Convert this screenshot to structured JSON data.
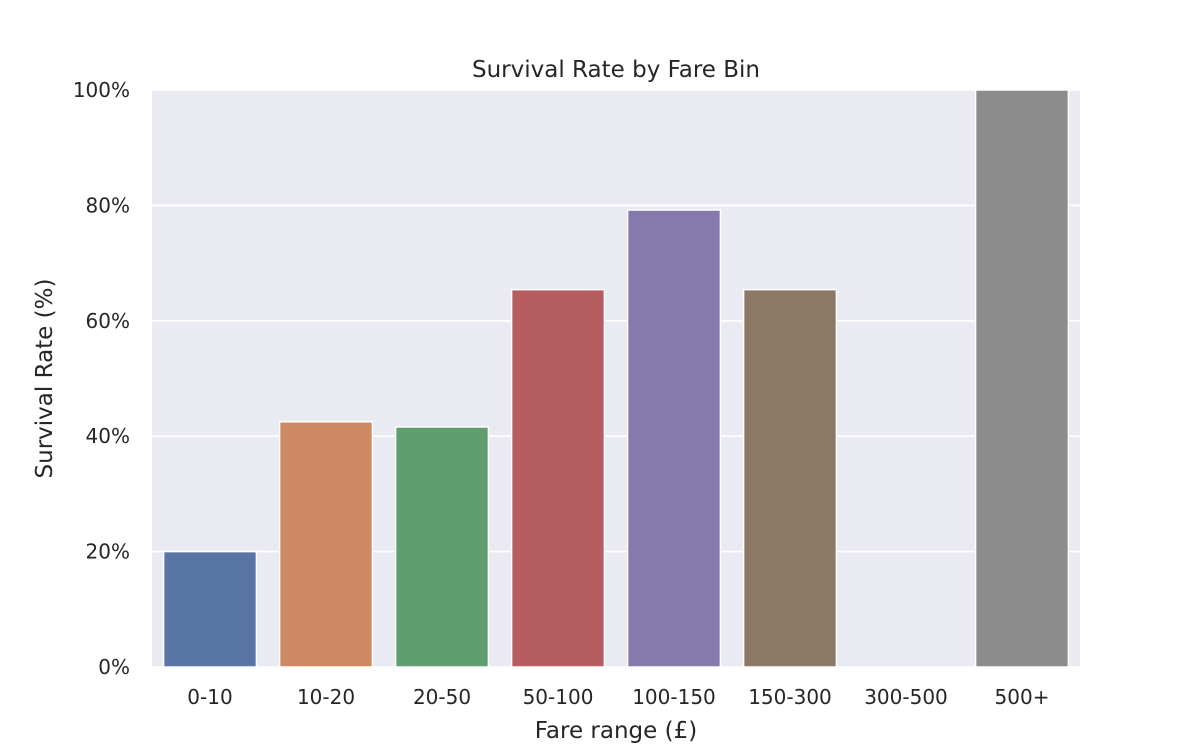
{
  "chart_data": {
    "type": "bar",
    "title": "Survival Rate by Fare Bin",
    "xlabel": "Fare range (£)",
    "ylabel": "Survival Rate (%)",
    "categories": [
      "0-10",
      "10-20",
      "20-50",
      "50-100",
      "100-150",
      "150-300",
      "300-500",
      "500+"
    ],
    "values": [
      20,
      42.5,
      41.6,
      65.4,
      79.2,
      65.4,
      0,
      100
    ],
    "ylim": [
      0,
      100
    ],
    "yticks": [
      0,
      20,
      40,
      60,
      80,
      100
    ],
    "ytick_labels": [
      "0%",
      "20%",
      "40%",
      "60%",
      "80%",
      "100%"
    ],
    "grid": true,
    "background_color": "#eaeaf2",
    "grid_color": "#ffffff",
    "colors": [
      "#5875a4",
      "#cc8963",
      "#5f9e6e",
      "#b55d60",
      "#857aab",
      "#8d7866",
      "#d095bf",
      "#8c8c8c"
    ]
  }
}
